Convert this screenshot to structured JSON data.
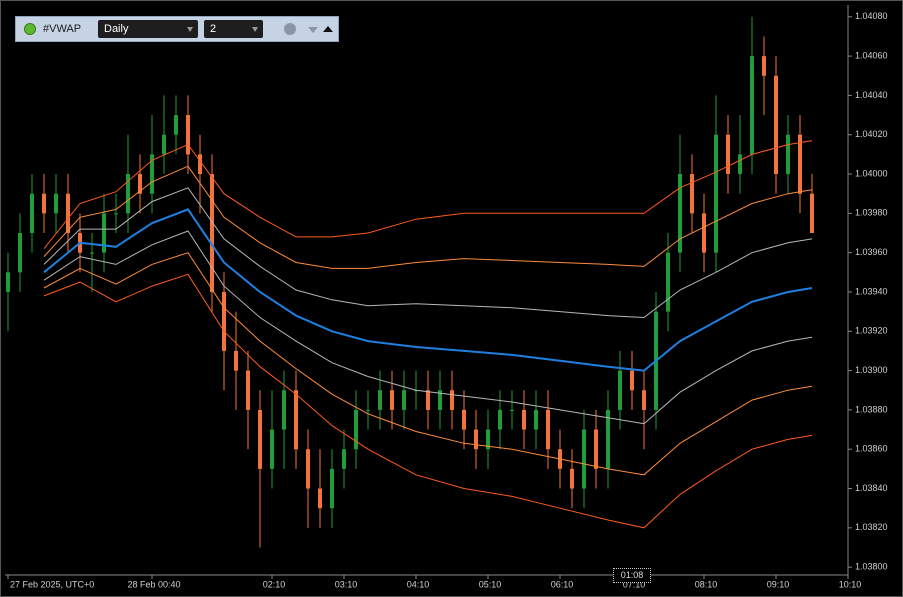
{
  "toolbar": {
    "indicator": "#VWAP",
    "period": "Daily",
    "deviations": "2"
  },
  "crosshair_label": "01:08",
  "chart_data": {
    "type": "candlestick",
    "up_color": "#1f9d3a",
    "down_color": "#f2743c",
    "open": [
      1.0394,
      1.0395,
      1.0397,
      1.0399,
      1.0398,
      1.0399,
      1.0397,
      1.0396,
      1.0396,
      1.0398,
      1.0398,
      1.04,
      1.0399,
      1.0401,
      1.0402,
      1.0403,
      1.0401,
      1.04,
      1.0394,
      1.0391,
      1.039,
      1.0388,
      1.0385,
      1.0387,
      1.0389,
      1.0386,
      1.0384,
      1.0383,
      1.0385,
      1.0386,
      1.0388,
      1.0388,
      1.0389,
      1.0388,
      1.0389,
      1.0389,
      1.0388,
      1.0389,
      1.0388,
      1.0387,
      1.0386,
      1.0387,
      1.0388,
      1.0388,
      1.0387,
      1.0388,
      1.0386,
      1.0385,
      1.0384,
      1.0387,
      1.0385,
      1.0388,
      1.039,
      1.0389,
      1.0388,
      1.0393,
      1.0396,
      1.04,
      1.0398,
      1.0396,
      1.0402,
      1.04,
      1.0401,
      1.0406,
      1.0405,
      1.04,
      1.0402,
      1.0399
    ],
    "high": [
      1.0396,
      1.0398,
      1.04,
      1.04,
      1.04,
      1.04,
      1.0398,
      1.0397,
      1.0399,
      1.0399,
      1.0402,
      1.0401,
      1.0403,
      1.0404,
      1.0404,
      1.0404,
      1.0402,
      1.0401,
      1.0395,
      1.0393,
      1.0391,
      1.0389,
      1.0389,
      1.039,
      1.039,
      1.0387,
      1.0386,
      1.0386,
      1.0387,
      1.0389,
      1.0389,
      1.039,
      1.039,
      1.039,
      1.039,
      1.039,
      1.039,
      1.039,
      1.0389,
      1.0388,
      1.0388,
      1.0389,
      1.0389,
      1.0389,
      1.0389,
      1.0389,
      1.0387,
      1.0386,
      1.0388,
      1.0388,
      1.0389,
      1.0391,
      1.0391,
      1.039,
      1.0394,
      1.0397,
      1.0402,
      1.0401,
      1.0399,
      1.0404,
      1.0403,
      1.0403,
      1.0408,
      1.0407,
      1.0406,
      1.0403,
      1.0403,
      1.04
    ],
    "low": [
      1.0392,
      1.0394,
      1.0396,
      1.0397,
      1.0397,
      1.0396,
      1.0395,
      1.0394,
      1.0395,
      1.0397,
      1.0397,
      1.0398,
      1.0398,
      1.04,
      1.0401,
      1.04,
      1.0398,
      1.0393,
      1.0389,
      1.0388,
      1.0386,
      1.0381,
      1.0384,
      1.0385,
      1.0385,
      1.0382,
      1.0382,
      1.0382,
      1.0384,
      1.0385,
      1.0387,
      1.0387,
      1.0387,
      1.0387,
      1.0388,
      1.0387,
      1.0387,
      1.0387,
      1.0386,
      1.0385,
      1.0385,
      1.0386,
      1.0387,
      1.0386,
      1.0386,
      1.0385,
      1.0384,
      1.0383,
      1.0383,
      1.0384,
      1.0384,
      1.0387,
      1.0388,
      1.0386,
      1.0387,
      1.0392,
      1.0395,
      1.0397,
      1.0395,
      1.0395,
      1.0399,
      1.0399,
      1.04,
      1.0403,
      1.0399,
      1.0399,
      1.0398,
      1.0397
    ],
    "close": [
      1.0395,
      1.0397,
      1.0399,
      1.0398,
      1.0399,
      1.0397,
      1.0396,
      1.0396,
      1.0398,
      1.0398,
      1.04,
      1.0399,
      1.0401,
      1.0402,
      1.0403,
      1.0401,
      1.04,
      1.0394,
      1.0391,
      1.039,
      1.0388,
      1.0385,
      1.0387,
      1.0389,
      1.0386,
      1.0384,
      1.0383,
      1.0385,
      1.0386,
      1.0388,
      1.0388,
      1.0389,
      1.0388,
      1.0389,
      1.0389,
      1.0388,
      1.0389,
      1.0388,
      1.0387,
      1.0386,
      1.0387,
      1.0388,
      1.0388,
      1.0387,
      1.0388,
      1.0386,
      1.0385,
      1.0384,
      1.0387,
      1.0385,
      1.0388,
      1.039,
      1.0389,
      1.0388,
      1.0393,
      1.0396,
      1.04,
      1.0398,
      1.0396,
      1.0402,
      1.04,
      1.0401,
      1.0406,
      1.0405,
      1.04,
      1.0402,
      1.0399,
      1.0397
    ],
    "line_x": [
      3,
      6,
      9,
      12,
      15,
      18,
      21,
      24,
      27,
      30,
      34,
      38,
      42,
      46,
      50,
      53,
      56,
      59,
      62,
      65,
      67
    ],
    "lines": [
      {
        "color": "#ff5a1f",
        "width": 1,
        "values": [
          1.03962,
          1.03985,
          1.03991,
          1.04007,
          1.04015,
          1.0399,
          1.03978,
          1.03968,
          1.03968,
          1.0397,
          1.03977,
          1.0398,
          1.0398,
          1.0398,
          1.0398,
          1.0398,
          1.03993,
          1.04001,
          1.0401,
          1.04015,
          1.04017
        ]
      },
      {
        "color": "#ff8c3a",
        "width": 1,
        "values": [
          1.03958,
          1.03978,
          1.03982,
          1.03996,
          1.04004,
          1.03978,
          1.03965,
          1.03955,
          1.03952,
          1.03952,
          1.03955,
          1.03957,
          1.03956,
          1.03955,
          1.03954,
          1.03953,
          1.03967,
          1.03976,
          1.03985,
          1.0399,
          1.03992
        ]
      },
      {
        "color": "#b8b8b8",
        "width": 1,
        "values": [
          1.03954,
          1.03972,
          1.03972,
          1.03986,
          1.03993,
          1.03967,
          1.03953,
          1.03941,
          1.03936,
          1.03933,
          1.03934,
          1.03933,
          1.03932,
          1.0393,
          1.03928,
          1.03927,
          1.03941,
          1.0395,
          1.0396,
          1.03965,
          1.03967
        ]
      },
      {
        "color": "#1e7fe0",
        "width": 2,
        "values": [
          1.0395,
          1.03965,
          1.03963,
          1.03975,
          1.03982,
          1.03955,
          1.0394,
          1.03928,
          1.0392,
          1.03915,
          1.03912,
          1.0391,
          1.03908,
          1.03905,
          1.03902,
          1.039,
          1.03915,
          1.03925,
          1.03935,
          1.0394,
          1.03942
        ]
      },
      {
        "color": "#b8b8b8",
        "width": 1,
        "values": [
          1.03946,
          1.03958,
          1.03954,
          1.03964,
          1.03971,
          1.03943,
          1.03927,
          1.03915,
          1.03904,
          1.03897,
          1.0389,
          1.03887,
          1.03884,
          1.0388,
          1.03876,
          1.03873,
          1.03889,
          1.039,
          1.0391,
          1.03915,
          1.03917
        ]
      },
      {
        "color": "#ff8c3a",
        "width": 1,
        "values": [
          1.03942,
          1.03952,
          1.03944,
          1.03954,
          1.0396,
          1.03932,
          1.03915,
          1.03901,
          1.03888,
          1.03878,
          1.03869,
          1.03863,
          1.0386,
          1.03855,
          1.0385,
          1.03847,
          1.03863,
          1.03874,
          1.03885,
          1.0389,
          1.03892
        ]
      },
      {
        "color": "#ff5a1f",
        "width": 1,
        "values": [
          1.03938,
          1.03945,
          1.03935,
          1.03943,
          1.03949,
          1.0392,
          1.03902,
          1.03888,
          1.03872,
          1.0386,
          1.03847,
          1.0384,
          1.03836,
          1.0383,
          1.03824,
          1.0382,
          1.03837,
          1.03849,
          1.0386,
          1.03865,
          1.03867
        ]
      }
    ],
    "xlim": [
      -0.25,
      70
    ],
    "xticks": [
      {
        "value": 0,
        "label": "27 Feb 2025, UTC+0"
      },
      {
        "value": 12,
        "label": "28 Feb 00:40"
      },
      {
        "value": 22,
        "label": "02:10"
      },
      {
        "value": 28,
        "label": "03:10"
      },
      {
        "value": 34,
        "label": "04:10"
      },
      {
        "value": 40,
        "label": "05:10"
      },
      {
        "value": 46,
        "label": "06:10"
      },
      {
        "value": 52,
        "label": "07:10"
      },
      {
        "value": 58,
        "label": "08:10"
      },
      {
        "value": 64,
        "label": "09:10"
      },
      {
        "value": 70,
        "label": "10:10"
      }
    ],
    "ylim": [
      1.03796,
      1.04086
    ],
    "yticks": [
      {
        "value": 1.038,
        "label": "1.03800"
      },
      {
        "value": 1.0382,
        "label": "1.03820"
      },
      {
        "value": 1.0384,
        "label": "1.03840"
      },
      {
        "value": 1.0386,
        "label": "1.03860"
      },
      {
        "value": 1.0388,
        "label": "1.03880"
      },
      {
        "value": 1.039,
        "label": "1.03900"
      },
      {
        "value": 1.0392,
        "label": "1.03920"
      },
      {
        "value": 1.0394,
        "label": "1.03940"
      },
      {
        "value": 1.0396,
        "label": "1.03960"
      },
      {
        "value": 1.0398,
        "label": "1.03980"
      },
      {
        "value": 1.04,
        "label": "1.04000"
      },
      {
        "value": 1.0402,
        "label": "1.04020"
      },
      {
        "value": 1.0404,
        "label": "1.04040"
      },
      {
        "value": 1.0406,
        "label": "1.04060"
      },
      {
        "value": 1.0408,
        "label": "1.04080"
      }
    ]
  }
}
